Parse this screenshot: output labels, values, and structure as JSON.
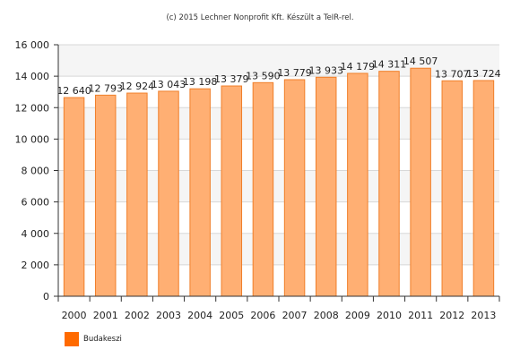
{
  "copyright": "(c) 2015 Lechner Nonprofit Kft. Készült a TeIR-rel.",
  "colors": {
    "bar_fill": "#ffaf73",
    "bar_stroke": "#f07f2a",
    "legend_swatch": "#ff6a00",
    "plot_band": "#f5f5f5",
    "grid": "#d8d8d8",
    "axis": "#333333"
  },
  "chart_data": {
    "type": "bar",
    "title": "",
    "xlabel": "",
    "ylabel": "",
    "ylim": [
      0,
      16000
    ],
    "yticks": [
      0,
      2000,
      4000,
      6000,
      8000,
      10000,
      12000,
      14000,
      16000
    ],
    "ytick_labels": [
      "0",
      "2 000",
      "4 000",
      "6 000",
      "8 000",
      "10 000",
      "12 000",
      "14 000",
      "16 000"
    ],
    "categories": [
      "2000",
      "2001",
      "2002",
      "2003",
      "2004",
      "2005",
      "2006",
      "2007",
      "2008",
      "2009",
      "2010",
      "2011",
      "2012",
      "2013"
    ],
    "series": [
      {
        "name": "Budakeszi",
        "values": [
          12640,
          12793,
          12924,
          13043,
          13198,
          13379,
          13590,
          13779,
          13933,
          14179,
          14311,
          14507,
          13707,
          13724
        ],
        "labels": [
          "12 640",
          "12 793",
          "12 924",
          "13 043",
          "13 198",
          "13 379",
          "13 590",
          "13 779",
          "13 933",
          "14 179",
          "14 311",
          "14 507",
          "13 707",
          "13 724"
        ]
      }
    ],
    "grid": true,
    "legend_position": "bottom-left"
  }
}
